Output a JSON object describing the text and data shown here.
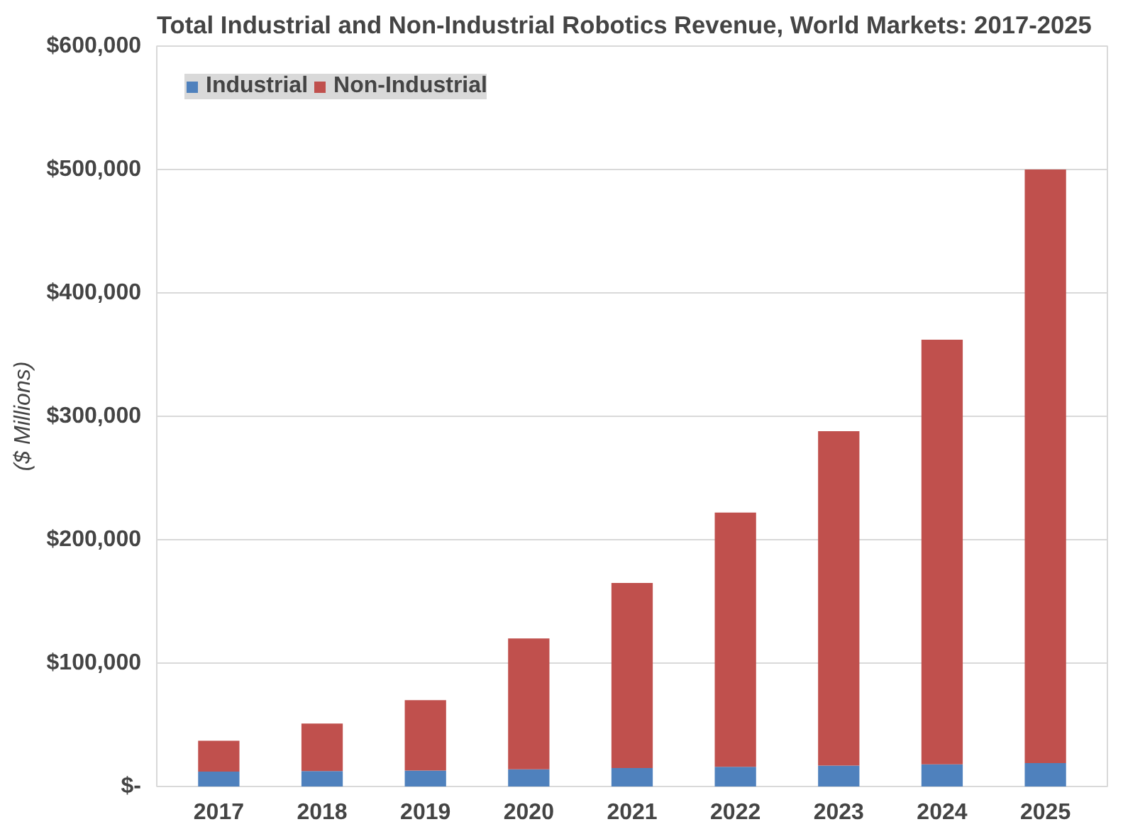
{
  "chart_data": {
    "type": "bar",
    "title": "Total Industrial and Non-Industrial Robotics Revenue, World Markets: 2017-2025",
    "ylabel": "($ Millions)",
    "categories": [
      "2017",
      "2018",
      "2019",
      "2020",
      "2021",
      "2022",
      "2023",
      "2024",
      "2025"
    ],
    "stacked": true,
    "series": [
      {
        "name": "Industrial",
        "color": "#4f81bd",
        "values": [
          12000,
          12500,
          13000,
          14000,
          15000,
          16000,
          17000,
          18000,
          19000
        ]
      },
      {
        "name": "Non-Industrial",
        "color": "#c0504d",
        "values": [
          25000,
          38500,
          57000,
          106000,
          150000,
          206000,
          271000,
          344000,
          481000
        ]
      }
    ],
    "ylim": [
      0,
      600000
    ],
    "yticks": [
      {
        "value": 0,
        "label": "$-"
      },
      {
        "value": 100000,
        "label": "$100,000"
      },
      {
        "value": 200000,
        "label": "$200,000"
      },
      {
        "value": 300000,
        "label": "$300,000"
      },
      {
        "value": 400000,
        "label": "$400,000"
      },
      {
        "value": 500000,
        "label": "$500,000"
      },
      {
        "value": 600000,
        "label": "$600,000"
      }
    ],
    "grid": "y",
    "legend": "top left"
  }
}
